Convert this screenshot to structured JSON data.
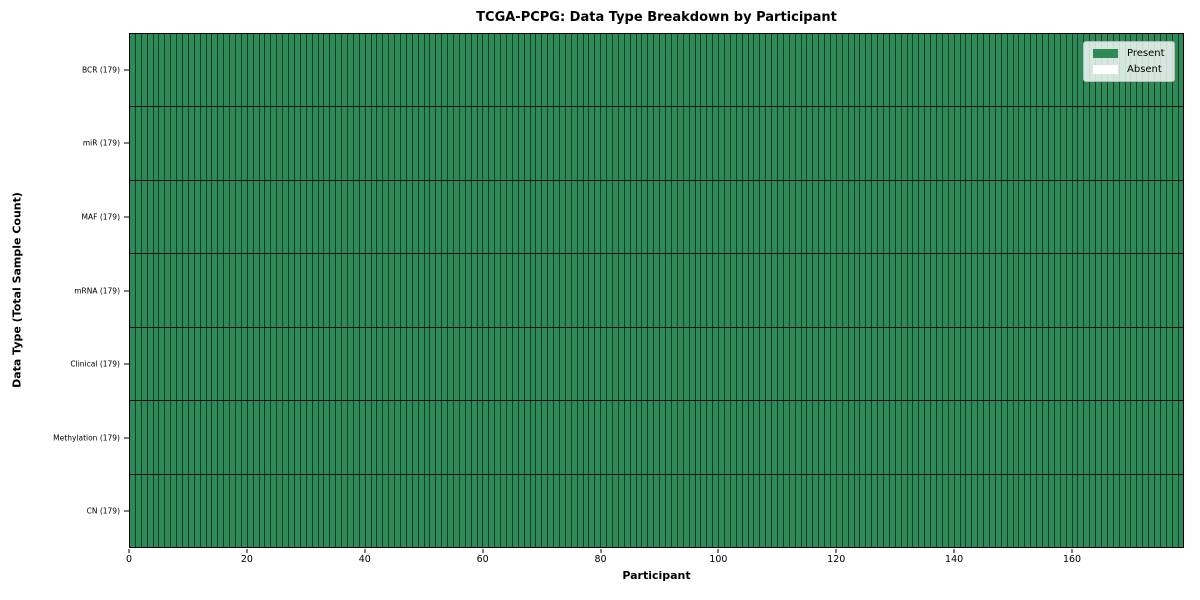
{
  "chart_data": {
    "type": "heatmap",
    "title": "TCGA-PCPG: Data Type Breakdown by Participant",
    "xlabel": "Participant",
    "ylabel": "Data Type (Total Sample Count)",
    "n_participants": 179,
    "x_ticks": [
      0,
      20,
      40,
      60,
      80,
      100,
      120,
      140,
      160
    ],
    "rows": [
      {
        "label": "BCR (179)",
        "present": 179,
        "absent": 0
      },
      {
        "label": "miR (179)",
        "present": 179,
        "absent": 0
      },
      {
        "label": "MAF (179)",
        "present": 179,
        "absent": 0
      },
      {
        "label": "mRNA (179)",
        "present": 179,
        "absent": 0
      },
      {
        "label": "Clinical (179)",
        "present": 179,
        "absent": 0
      },
      {
        "label": "Methylation (179)",
        "present": 179,
        "absent": 0
      },
      {
        "label": "CN (179)",
        "present": 179,
        "absent": 0
      }
    ],
    "legend": [
      {
        "label": "Present",
        "color": "#2e8b57"
      },
      {
        "label": "Absent",
        "color": "#ffffff"
      }
    ],
    "legend_position": "upper right",
    "colors": {
      "present": "#2e8b57",
      "absent": "#ffffff",
      "cell_edge": "rgba(0,0,0,0.55)",
      "row_separator": "#0d0d0d",
      "spine": "#000000"
    },
    "grid": false
  }
}
